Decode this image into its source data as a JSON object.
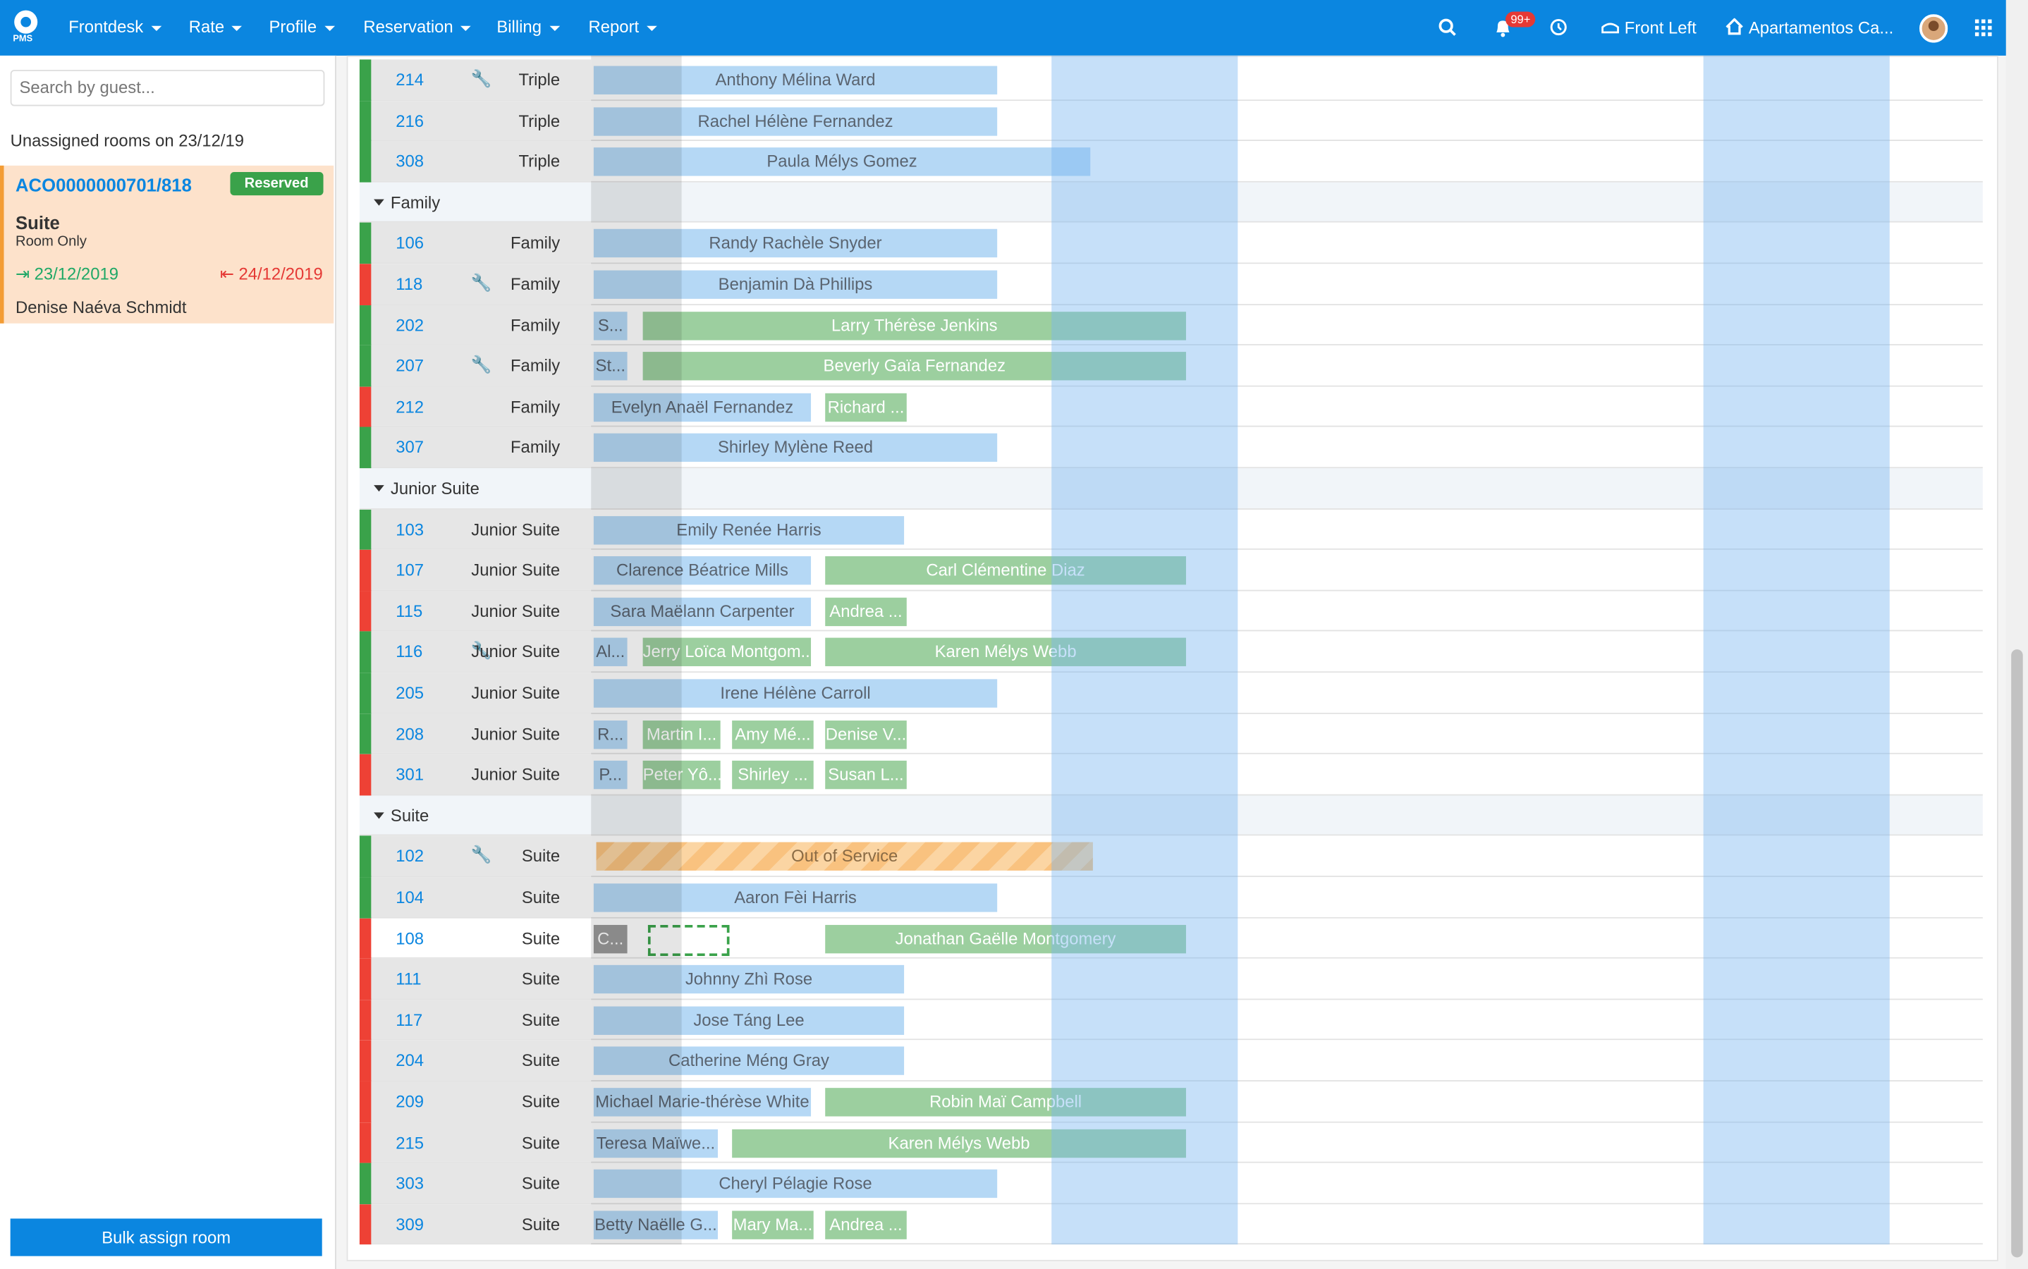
{
  "nav": {
    "logo": "PMS",
    "menus": [
      "Frontdesk",
      "Rate",
      "Profile",
      "Reservation",
      "Billing",
      "Report"
    ],
    "notifications": "99+",
    "location": "Front Left",
    "property": "Apartamentos Ca..."
  },
  "sidebar": {
    "search_placeholder": "Search by guest...",
    "heading": "Unassigned rooms on 23/12/19",
    "card": {
      "code": "ACO0000000701/818",
      "status": "Reserved",
      "room_type": "Suite",
      "board": "Room Only",
      "checkin": "23/12/2019",
      "checkout": "24/12/2019",
      "guest": "Denise Naéva Schmidt"
    },
    "button": "Bulk assign room"
  },
  "groups": [
    {
      "rooms": [
        {
          "number": "214",
          "type": "Triple",
          "bookings": [
            "Anthony Mélina Ward"
          ]
        },
        {
          "number": "216",
          "type": "Triple",
          "bookings": [
            "Rachel Hélène Fernandez"
          ]
        },
        {
          "number": "308",
          "type": "Triple",
          "bookings": [
            "Paula Mélys Gomez"
          ]
        }
      ]
    },
    {
      "name": "Family",
      "rooms": [
        {
          "number": "106",
          "type": "Family",
          "bookings": [
            "Randy Rachèle Snyder"
          ]
        },
        {
          "number": "118",
          "type": "Family",
          "bookings": [
            "Benjamin Dà Phillips"
          ]
        },
        {
          "number": "202",
          "type": "Family",
          "bookings": [
            "S...",
            "Larry Thérèse Jenkins"
          ]
        },
        {
          "number": "207",
          "type": "Family",
          "bookings": [
            "St...",
            "Beverly Gaïa Fernandez"
          ]
        },
        {
          "number": "212",
          "type": "Family",
          "bookings": [
            "Evelyn Anaël Fernandez",
            "Richard ..."
          ]
        },
        {
          "number": "307",
          "type": "Family",
          "bookings": [
            "Shirley Mylène Reed"
          ]
        }
      ]
    },
    {
      "name": "Junior Suite",
      "rooms": [
        {
          "number": "103",
          "type": "Junior Suite",
          "bookings": [
            "Emily Renée Harris"
          ]
        },
        {
          "number": "107",
          "type": "Junior Suite",
          "bookings": [
            "Clarence Béatrice Mills",
            "Carl Clémentine Diaz"
          ]
        },
        {
          "number": "115",
          "type": "Junior Suite",
          "bookings": [
            "Sara Maëlann Carpenter",
            "Andrea ..."
          ]
        },
        {
          "number": "116",
          "type": "Junior Suite",
          "bookings": [
            "Al...",
            "Jerry Loïca Montgom...",
            "Karen Mélys Webb"
          ]
        },
        {
          "number": "205",
          "type": "Junior Suite",
          "bookings": [
            "Irene Hélène Carroll"
          ]
        },
        {
          "number": "208",
          "type": "Junior Suite",
          "bookings": [
            "R...",
            "Martin I...",
            "Amy Mé...",
            "Denise V..."
          ]
        },
        {
          "number": "301",
          "type": "Junior Suite",
          "bookings": [
            "P...",
            "Peter Yô...",
            "Shirley ...",
            "Susan L..."
          ]
        }
      ]
    },
    {
      "name": "Suite",
      "rooms": [
        {
          "number": "102",
          "type": "Suite",
          "bookings": [
            "Out of Service"
          ]
        },
        {
          "number": "104",
          "type": "Suite",
          "bookings": [
            "Aaron Fèi Harris"
          ]
        },
        {
          "number": "108",
          "type": "Suite",
          "bookings": [
            "C...",
            "Jonathan Gaëlle Montgomery"
          ]
        },
        {
          "number": "111",
          "type": "Suite",
          "bookings": [
            "Johnny Zhì Rose"
          ]
        },
        {
          "number": "117",
          "type": "Suite",
          "bookings": [
            "Jose Táng Lee"
          ]
        },
        {
          "number": "204",
          "type": "Suite",
          "bookings": [
            "Catherine Méng Gray"
          ]
        },
        {
          "number": "209",
          "type": "Suite",
          "bookings": [
            "Michael Marie-thérèse White",
            "Robin Maï Campbell"
          ]
        },
        {
          "number": "215",
          "type": "Suite",
          "bookings": [
            "Teresa Maïwe...",
            "Karen Mélys Webb"
          ]
        },
        {
          "number": "303",
          "type": "Suite",
          "bookings": [
            "Cheryl Pélagie Rose"
          ]
        },
        {
          "number": "309",
          "type": "Suite",
          "bookings": [
            "Betty Naëlle G...",
            "Mary Ma...",
            "Andrea ..."
          ]
        }
      ]
    }
  ]
}
